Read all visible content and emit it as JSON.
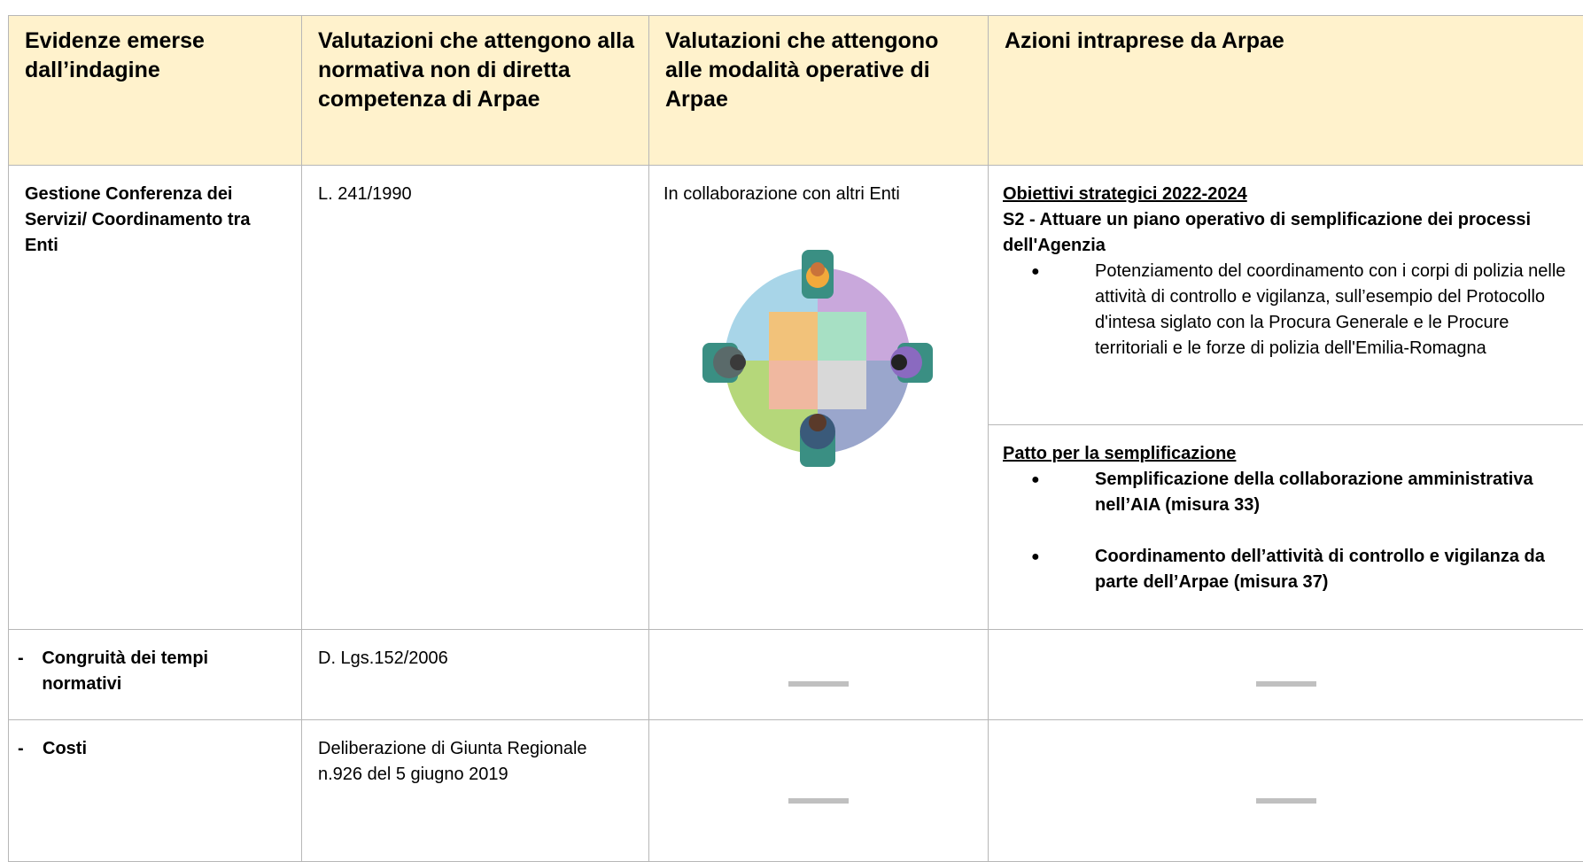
{
  "table": {
    "header": [
      "Evidenze emerse dall’indagine",
      "Valutazioni che attengono alla normativa non di diretta competenza di Arpae",
      "Valutazioni che attengono alle modalità operative di Arpae",
      "Azioni intraprese da Arpae"
    ],
    "rows": [
      {
        "evidence": "Gestione Conferenza dei Servizi/ Coordinamento tra Enti",
        "norm": "L. 241/1990",
        "operative": "In collaborazione con altri Enti",
        "actions": [
          {
            "heading": "Obiettivi strategici 2022-2024",
            "subheading": "S2 - Attuare un piano operativo di semplificazione dei processi dell'Agenzia",
            "bullets": [
              "Potenziamento del coordinamento con i corpi di polizia nelle attività di controllo e vigilanza, sull’esempio del Protocollo d'intesa siglato con la Procura Generale e le Procure territoriali e le forze di polizia dell'Emilia-Romagna"
            ]
          },
          {
            "heading": "Patto per la semplificazione",
            "bullets": [
              "Semplificazione della collaborazione amministrativa nell’AIA (misura 33)",
              "Coordinamento dell’attività di controllo e vigilanza da parte dell’Arpae (misura 37)"
            ]
          }
        ]
      },
      {
        "evidence": "Congruità dei tempi normativi",
        "norm": "D. Lgs.152/2006"
      },
      {
        "evidence": "Costi",
        "norm": "Deliberazione di Giunta Regionale n.926 del 5 giugno 2019"
      }
    ]
  }
}
